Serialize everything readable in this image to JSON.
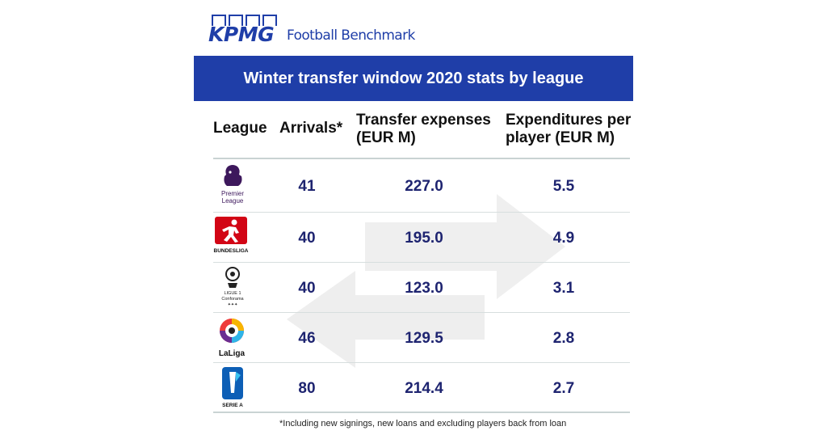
{
  "brand": {
    "logo_text": "KPMG",
    "subtitle": "Football Benchmark"
  },
  "chart_data": {
    "type": "table",
    "title": "Winter transfer window 2020 stats by league",
    "columns": [
      "League",
      "Arrivals*",
      "Transfer expenses (EUR M)",
      "Expenditures per player (EUR M)"
    ],
    "rows": [
      {
        "league_logo": "Premier League",
        "arrivals": "41",
        "expenses": "227.0",
        "per_player": "5.5"
      },
      {
        "league_logo": "BUNDESLIGA",
        "arrivals": "40",
        "expenses": "195.0",
        "per_player": "4.9"
      },
      {
        "league_logo": "LIGUE 1 Conforama",
        "arrivals": "40",
        "expenses": "123.0",
        "per_player": "3.1"
      },
      {
        "league_logo": "LaLiga",
        "arrivals": "46",
        "expenses": "129.5",
        "per_player": "2.8"
      },
      {
        "league_logo": "SERIE A",
        "arrivals": "80",
        "expenses": "214.4",
        "per_player": "2.7"
      }
    ],
    "footnote": "*Including new signings, new loans and excluding players back from loan"
  },
  "colors": {
    "brand_blue": "#1f3ea8",
    "value_text": "#1e2470",
    "rule": "#c9d3d3",
    "arrow": "#eeeeee"
  },
  "icons": [
    "premier-league-logo",
    "bundesliga-logo",
    "ligue-1-logo",
    "laliga-logo",
    "serie-a-logo",
    "background-arrows"
  ]
}
